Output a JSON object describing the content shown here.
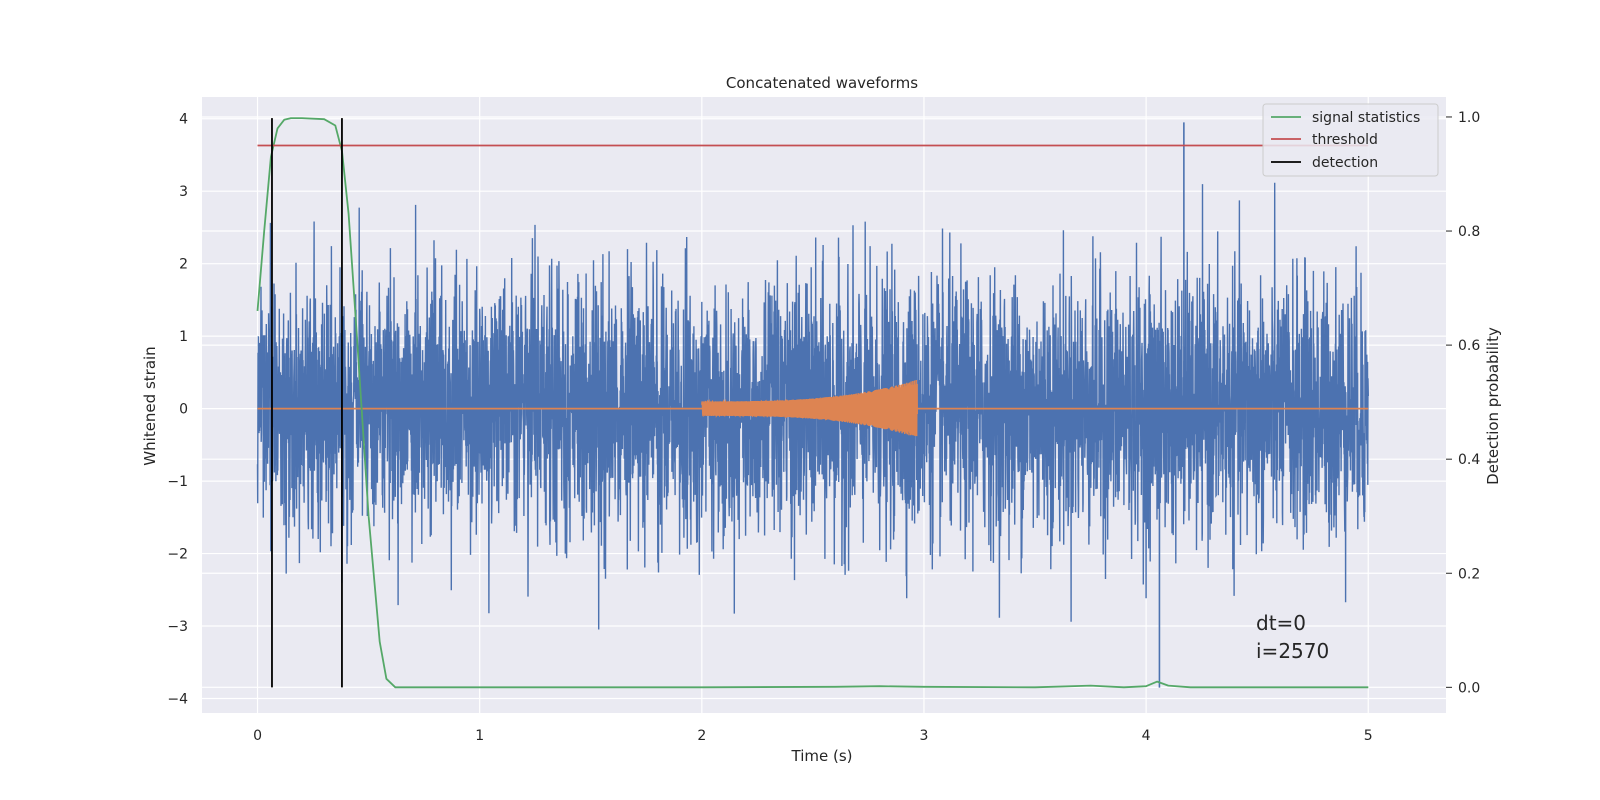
{
  "colors": {
    "background": "#eaeaf2",
    "grid": "#ffffff",
    "noisy_strain": "#4c72b0",
    "injected_waveform": "#dd8452",
    "signal_statistics": "#55a868",
    "threshold": "#c44e52",
    "detection": "#000000"
  },
  "chart_data": {
    "type": "line",
    "title": "Concatenated waveforms",
    "xlabel": "Time (s)",
    "ylabel_left": "Whitened strain",
    "ylabel_right": "Detection probability",
    "xlim": [
      -0.25,
      5.35
    ],
    "ylim_left": [
      -4.2,
      4.3
    ],
    "ylim_right": [
      -0.045,
      1.035
    ],
    "xticks": [
      0,
      1,
      2,
      3,
      4,
      5
    ],
    "yticks_left": [
      -4,
      -3,
      -2,
      -1,
      0,
      1,
      2,
      3,
      4
    ],
    "yticks_right": [
      0.0,
      0.2,
      0.4,
      0.6,
      0.8,
      1.0
    ],
    "grid": true,
    "legend_position": "top-right",
    "series": [
      {
        "name": "",
        "axis": "left",
        "color_key": "noisy_strain",
        "style": "noise",
        "t_start": 0.0,
        "t_end": 5.0,
        "typical_peak": 2.0,
        "max": 3.95,
        "min": -3.85
      },
      {
        "name": "",
        "axis": "left",
        "color_key": "injected_waveform",
        "style": "chirp",
        "t_start": 2.0,
        "t_end": 2.97,
        "amplitude_start": 0.1,
        "amplitude_end": 0.4,
        "baseline": 0.0
      },
      {
        "name": "signal statistics",
        "axis": "right",
        "color_key": "signal_statistics",
        "x": [
          0.0,
          0.03,
          0.06,
          0.09,
          0.12,
          0.15,
          0.2,
          0.3,
          0.35,
          0.38,
          0.41,
          0.45,
          0.5,
          0.55,
          0.58,
          0.62,
          1.0,
          2.0,
          2.6,
          2.8,
          3.0,
          3.5,
          3.75,
          3.9,
          4.0,
          4.05,
          4.1,
          4.2,
          5.0
        ],
        "y": [
          0.66,
          0.8,
          0.93,
          0.98,
          0.995,
          0.998,
          0.998,
          0.996,
          0.985,
          0.94,
          0.83,
          0.6,
          0.3,
          0.08,
          0.015,
          0.0,
          0.0,
          0.0,
          0.001,
          0.002,
          0.001,
          0.0,
          0.003,
          0.0,
          0.002,
          0.01,
          0.003,
          0.0,
          0.0
        ]
      },
      {
        "name": "threshold",
        "axis": "right",
        "color_key": "threshold",
        "x": [
          0.0,
          5.0
        ],
        "y": [
          0.95,
          0.95
        ]
      },
      {
        "name": "detection",
        "axis": "right",
        "color_key": "detection",
        "type": "vertical_lines",
        "x": [
          0.065,
          0.38
        ],
        "y_range": [
          0.0,
          0.998
        ]
      }
    ],
    "legend": [
      "signal statistics",
      "threshold",
      "detection"
    ],
    "annotations": [
      "dt=0",
      "i=2570"
    ]
  }
}
